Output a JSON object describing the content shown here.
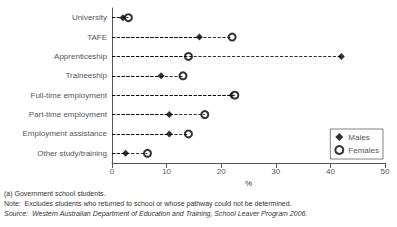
{
  "chart_data": {
    "type": "dot",
    "orientation": "horizontal",
    "categories": [
      "University",
      "TAFE",
      "Apprenticeship",
      "Traineeship",
      "Full-time employment",
      "Part-time employment",
      "Employment assistance",
      "Other study/training"
    ],
    "series": [
      {
        "name": "Males",
        "color": "black",
        "marker": "diamond",
        "values": [
          2.0,
          16.0,
          42.0,
          9.0,
          22.0,
          10.5,
          10.5,
          2.5
        ]
      },
      {
        "name": "Females",
        "color": "black",
        "marker": "circle-open",
        "values": [
          3.0,
          22.0,
          14.0,
          13.0,
          22.5,
          17.0,
          14.0,
          6.5
        ]
      }
    ],
    "xlabel": "%",
    "xlim": [
      0,
      50
    ],
    "xticks": [
      0,
      10,
      20,
      30,
      40,
      50
    ],
    "line_style": "dashed",
    "grid": false,
    "legend": "lower right",
    "annotations": [
      "(a) Government school students.",
      "Note:  Excludes students who returned to school or whose pathway could not be determined.",
      "Source:  Western Australian Department of Education and Training, School Leaver Program 2006."
    ]
  }
}
